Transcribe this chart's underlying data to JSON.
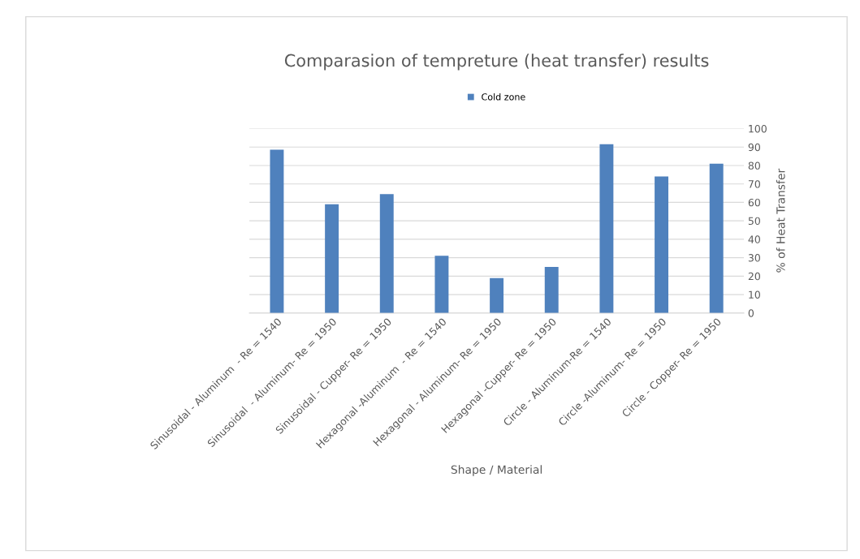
{
  "chart_data": {
    "type": "bar",
    "title": "Comparasion of tempreture (heat transfer) results",
    "xlabel": "Shape / Material",
    "ylabel": "% of Heat Transfer",
    "categories": [
      "Sinusoidal - Aluminum  - Re = 1540",
      "Sinusoidal  - Aluminum- Re = 1950",
      "Sinusoidal - Cupper- Re = 1950",
      "Hexagonal -Aluminum  - Re = 1540",
      "Hexagonal - Aluminum- Re = 1950",
      "Hexagonal -Cupper- Re = 1950",
      "Circle - Aluminum-Re = 1540",
      "Circle -Aluminum- Re = 1950",
      "Circle - Copper- Re = 1950"
    ],
    "series": [
      {
        "name": "Cold zone",
        "color": "#4f81bd",
        "values": [
          88.5,
          59,
          64.5,
          31,
          19,
          25,
          91.5,
          74,
          81
        ]
      }
    ],
    "ylim": [
      0,
      100
    ],
    "yticks": [
      0,
      10,
      20,
      30,
      40,
      50,
      60,
      70,
      80,
      90,
      100
    ],
    "grid": "y",
    "legend": "top"
  }
}
